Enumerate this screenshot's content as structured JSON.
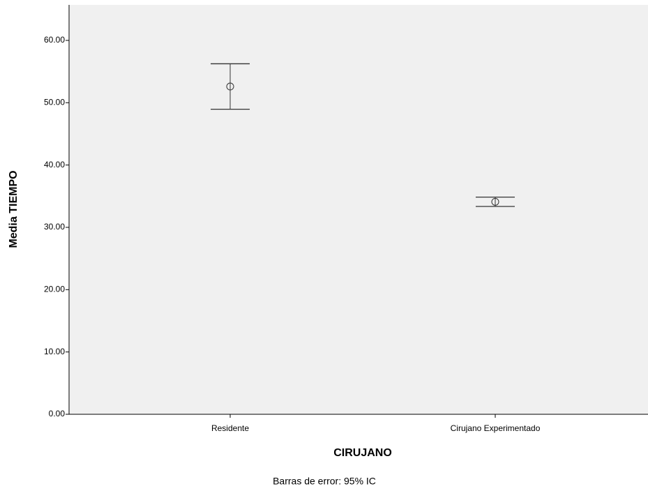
{
  "chart_data": {
    "type": "errorbar",
    "x_label": "CIRUJANO",
    "y_label": "Media TIEMPO",
    "footnote": "Barras de error: 95% IC",
    "categories": [
      "Residente",
      "Cirujano Experimentado"
    ],
    "values": [
      52.6,
      34.1
    ],
    "errors": [
      3.65,
      0.75
    ],
    "color": "#333333",
    "ylim": [
      0,
      65.7
    ],
    "yticks": [
      {
        "value": 0,
        "label": "0.00"
      },
      {
        "value": 10,
        "label": "10.00"
      },
      {
        "value": 20,
        "label": "20.00"
      },
      {
        "value": 30,
        "label": "30.00"
      },
      {
        "value": 40,
        "label": "40.00"
      },
      {
        "value": 50,
        "label": "50.00"
      },
      {
        "value": 60,
        "label": "60.00"
      }
    ]
  }
}
